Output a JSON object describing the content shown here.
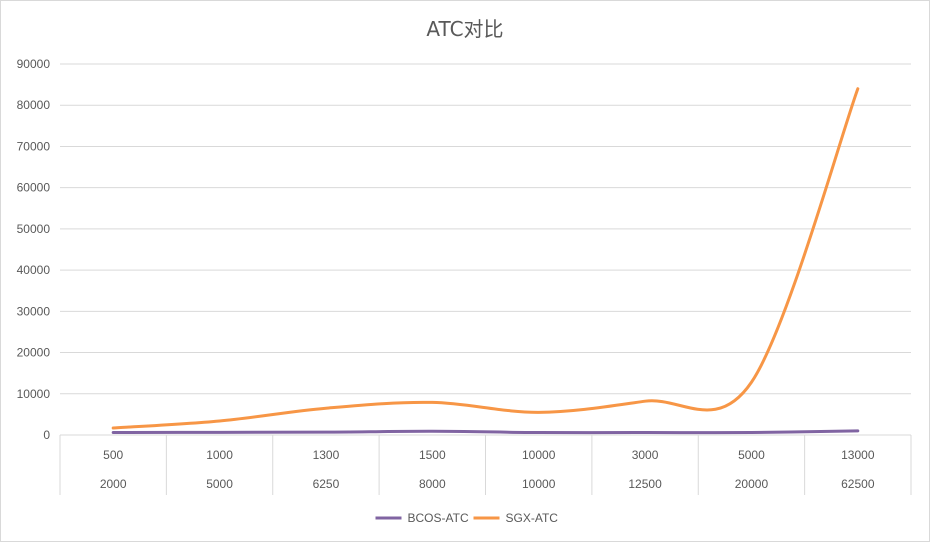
{
  "chart_data": {
    "type": "line",
    "title": "ATC对比",
    "xlabel": "",
    "ylabel": "",
    "ylim": [
      0,
      90000
    ],
    "y_ticks": [
      0,
      10000,
      20000,
      30000,
      40000,
      50000,
      60000,
      70000,
      80000,
      90000
    ],
    "y_tick_labels": [
      "0",
      "10000",
      "20000",
      "30000",
      "40000",
      "50000",
      "60000",
      "70000",
      "80000",
      "90000"
    ],
    "categories_level1": [
      "500",
      "1000",
      "1300",
      "1500",
      "10000",
      "3000",
      "5000",
      "13000"
    ],
    "categories_level2": [
      "2000",
      "5000",
      "6250",
      "8000",
      "10000",
      "12500",
      "20000",
      "62500"
    ],
    "grid": true,
    "legend_position": "bottom",
    "series": [
      {
        "name": "BCOS-ATC",
        "color": "#8064a2",
        "values": [
          600,
          650,
          700,
          900,
          600,
          600,
          600,
          1000
        ]
      },
      {
        "name": "SGX-ATC",
        "color": "#f79646",
        "values": [
          1700,
          3400,
          6500,
          7900,
          5500,
          8200,
          12800,
          84000
        ]
      }
    ]
  }
}
